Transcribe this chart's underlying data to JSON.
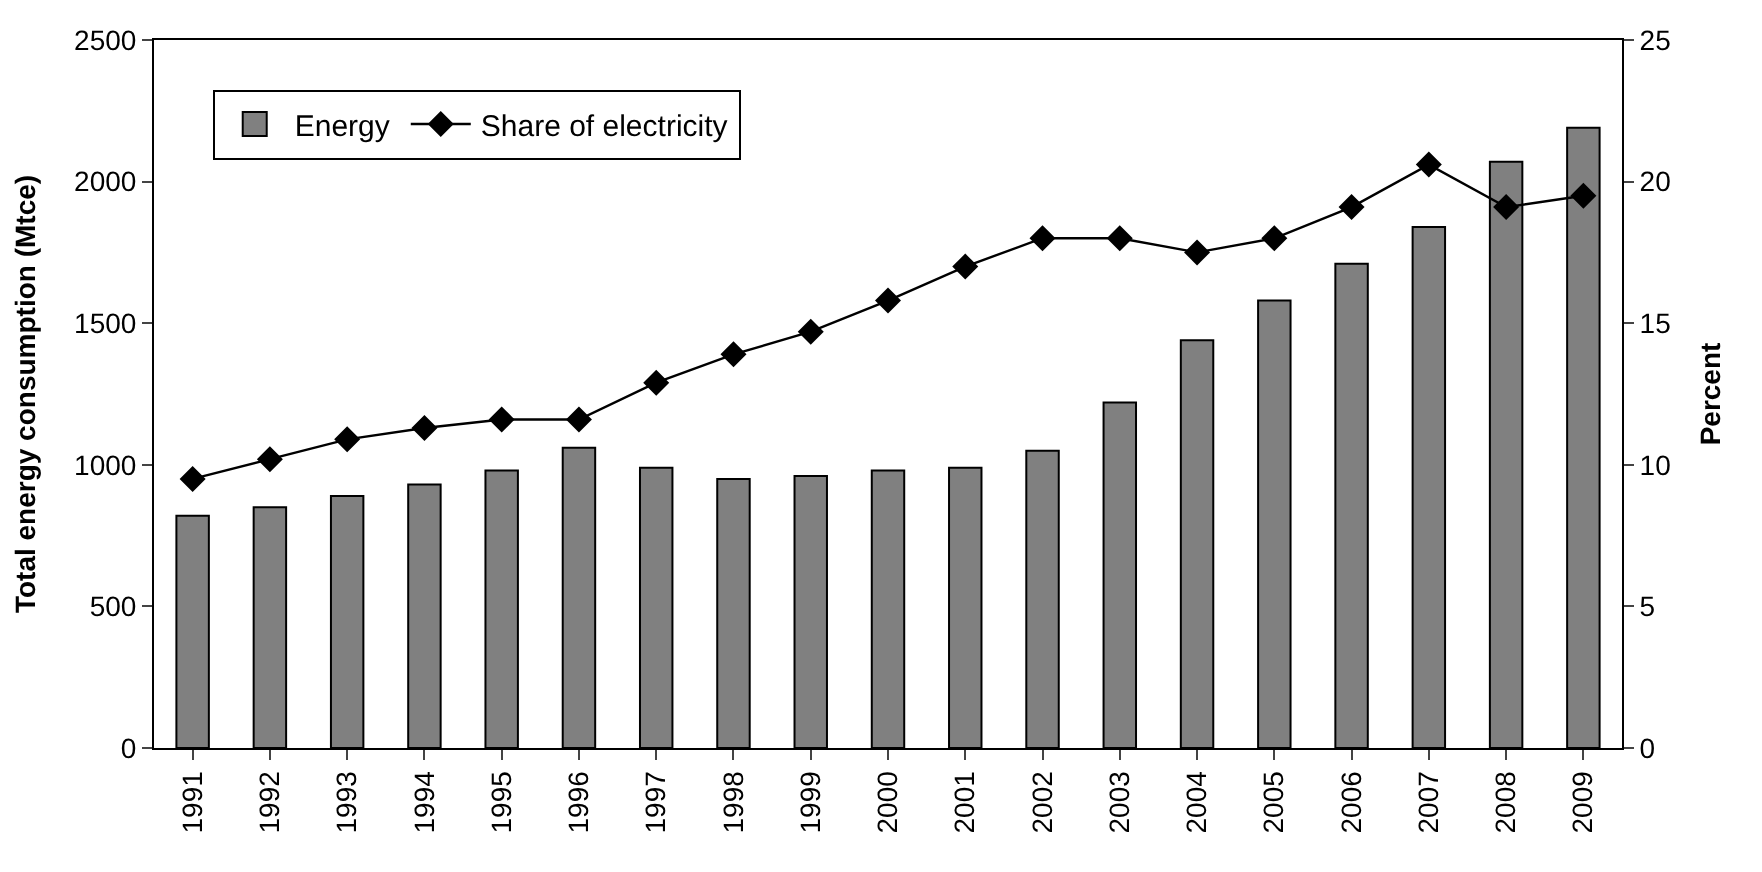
{
  "chart_data": {
    "type": "bar",
    "ylabel": "Total energy consumption (Mtce)",
    "y2label": "Percent",
    "categories": [
      "1991",
      "1992",
      "1993",
      "1994",
      "1995",
      "1996",
      "1997",
      "1998",
      "1999",
      "2000",
      "2001",
      "2002",
      "2003",
      "2004",
      "2005",
      "2006",
      "2007",
      "2008",
      "2009"
    ],
    "series": [
      {
        "name": "Energy",
        "color": "#808080",
        "values": [
          820,
          850,
          890,
          930,
          980,
          1060,
          990,
          950,
          960,
          980,
          990,
          1050,
          1220,
          1440,
          1580,
          1710,
          1840,
          2070,
          2190
        ]
      },
      {
        "name": "Share of electricity",
        "type": "line",
        "axis": "y2",
        "color": "#000000",
        "marker": "diamond",
        "values": [
          9.5,
          10.2,
          10.9,
          11.3,
          11.6,
          11.6,
          12.9,
          13.9,
          14.7,
          15.8,
          17.0,
          18.0,
          18.0,
          17.5,
          18.0,
          19.1,
          20.6,
          19.1,
          19.5
        ]
      }
    ],
    "ylim": [
      0,
      2500
    ],
    "yticks": [
      0,
      500,
      1000,
      1500,
      2000,
      2500
    ],
    "y2lim": [
      0,
      25
    ],
    "y2ticks": [
      0,
      5,
      10,
      15,
      20,
      25
    ],
    "grid": false,
    "legend": "top left"
  }
}
